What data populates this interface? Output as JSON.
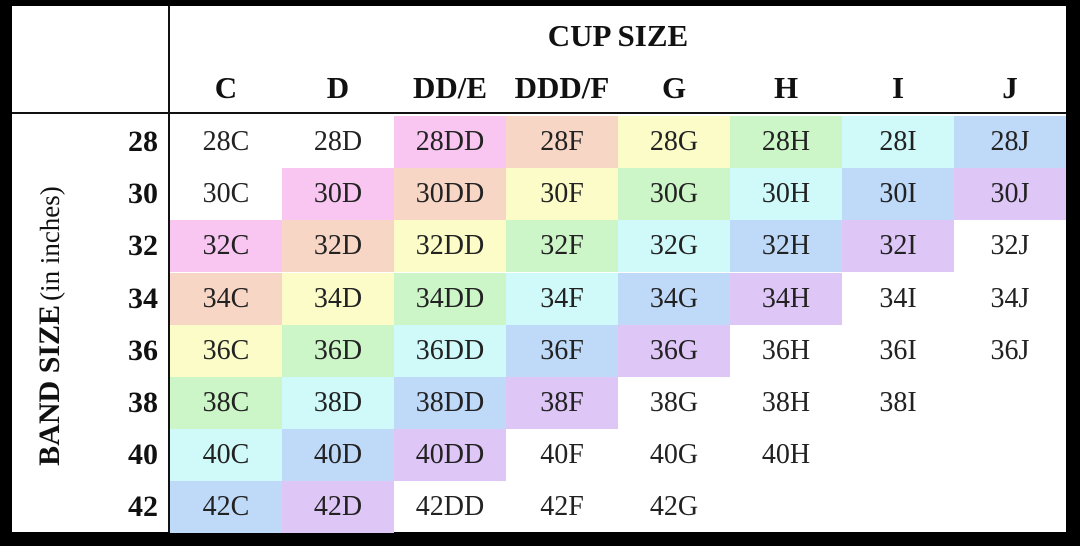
{
  "cup_size_title": "CUP SIZE",
  "cups": [
    "C",
    "D",
    "DD/E",
    "DDD/F",
    "G",
    "H",
    "I",
    "J"
  ],
  "band_size_title": "BAND SIZE",
  "band_size_subtitle": "(in inches)",
  "bands": [
    "28",
    "30",
    "32",
    "34",
    "36",
    "38",
    "40",
    "42"
  ],
  "colors": {
    "pink": "#F9C6F1",
    "peach": "#F8D6C6",
    "yellow": "#FBFCC8",
    "green": "#CDF6C8",
    "cyan": "#CFFAF9",
    "blue": "#BFD9F8",
    "purple": "#DEC6F7"
  },
  "rows": [
    {
      "cells": [
        {
          "text": "28C",
          "color": ""
        },
        {
          "text": "28D",
          "color": ""
        },
        {
          "text": "28DD",
          "color": "#F9C6F1"
        },
        {
          "text": "28F",
          "color": "#F8D6C6"
        },
        {
          "text": "28G",
          "color": "#FBFCC8"
        },
        {
          "text": "28H",
          "color": "#CDF6C8"
        },
        {
          "text": "28I",
          "color": "#CFFAF9"
        },
        {
          "text": "28J",
          "color": "#BFD9F8"
        }
      ]
    },
    {
      "cells": [
        {
          "text": "30C",
          "color": ""
        },
        {
          "text": "30D",
          "color": "#F9C6F1"
        },
        {
          "text": "30DD",
          "color": "#F8D6C6"
        },
        {
          "text": "30F",
          "color": "#FBFCC8"
        },
        {
          "text": "30G",
          "color": "#CDF6C8"
        },
        {
          "text": "30H",
          "color": "#CFFAF9"
        },
        {
          "text": "30I",
          "color": "#BFD9F8"
        },
        {
          "text": "30J",
          "color": "#DEC6F7"
        }
      ]
    },
    {
      "cells": [
        {
          "text": "32C",
          "color": "#F9C6F1"
        },
        {
          "text": "32D",
          "color": "#F8D6C6"
        },
        {
          "text": "32DD",
          "color": "#FBFCC8"
        },
        {
          "text": "32F",
          "color": "#CDF6C8"
        },
        {
          "text": "32G",
          "color": "#CFFAF9"
        },
        {
          "text": "32H",
          "color": "#BFD9F8"
        },
        {
          "text": "32I",
          "color": "#DEC6F7"
        },
        {
          "text": "32J",
          "color": ""
        }
      ]
    },
    {
      "cells": [
        {
          "text": "34C",
          "color": "#F8D6C6"
        },
        {
          "text": "34D",
          "color": "#FBFCC8"
        },
        {
          "text": "34DD",
          "color": "#CDF6C8"
        },
        {
          "text": "34F",
          "color": "#CFFAF9"
        },
        {
          "text": "34G",
          "color": "#BFD9F8"
        },
        {
          "text": "34H",
          "color": "#DEC6F7"
        },
        {
          "text": "34I",
          "color": ""
        },
        {
          "text": "34J",
          "color": ""
        }
      ]
    },
    {
      "cells": [
        {
          "text": "36C",
          "color": "#FBFCC8"
        },
        {
          "text": "36D",
          "color": "#CDF6C8"
        },
        {
          "text": "36DD",
          "color": "#CFFAF9"
        },
        {
          "text": "36F",
          "color": "#BFD9F8"
        },
        {
          "text": "36G",
          "color": "#DEC6F7"
        },
        {
          "text": "36H",
          "color": ""
        },
        {
          "text": "36I",
          "color": ""
        },
        {
          "text": "36J",
          "color": ""
        }
      ]
    },
    {
      "cells": [
        {
          "text": "38C",
          "color": "#CDF6C8"
        },
        {
          "text": "38D",
          "color": "#CFFAF9"
        },
        {
          "text": "38DD",
          "color": "#BFD9F8"
        },
        {
          "text": "38F",
          "color": "#DEC6F7"
        },
        {
          "text": "38G",
          "color": ""
        },
        {
          "text": "38H",
          "color": ""
        },
        {
          "text": "38I",
          "color": ""
        },
        {
          "text": "",
          "color": ""
        }
      ]
    },
    {
      "cells": [
        {
          "text": "40C",
          "color": "#CFFAF9"
        },
        {
          "text": "40D",
          "color": "#BFD9F8"
        },
        {
          "text": "40DD",
          "color": "#DEC6F7"
        },
        {
          "text": "40F",
          "color": ""
        },
        {
          "text": "40G",
          "color": ""
        },
        {
          "text": "40H",
          "color": ""
        },
        {
          "text": "",
          "color": ""
        },
        {
          "text": "",
          "color": ""
        }
      ]
    },
    {
      "cells": [
        {
          "text": "42C",
          "color": "#BFD9F8"
        },
        {
          "text": "42D",
          "color": "#DEC6F7"
        },
        {
          "text": "42DD",
          "color": ""
        },
        {
          "text": "42F",
          "color": ""
        },
        {
          "text": "42G",
          "color": ""
        },
        {
          "text": "",
          "color": ""
        },
        {
          "text": "",
          "color": ""
        },
        {
          "text": "",
          "color": ""
        }
      ]
    }
  ]
}
